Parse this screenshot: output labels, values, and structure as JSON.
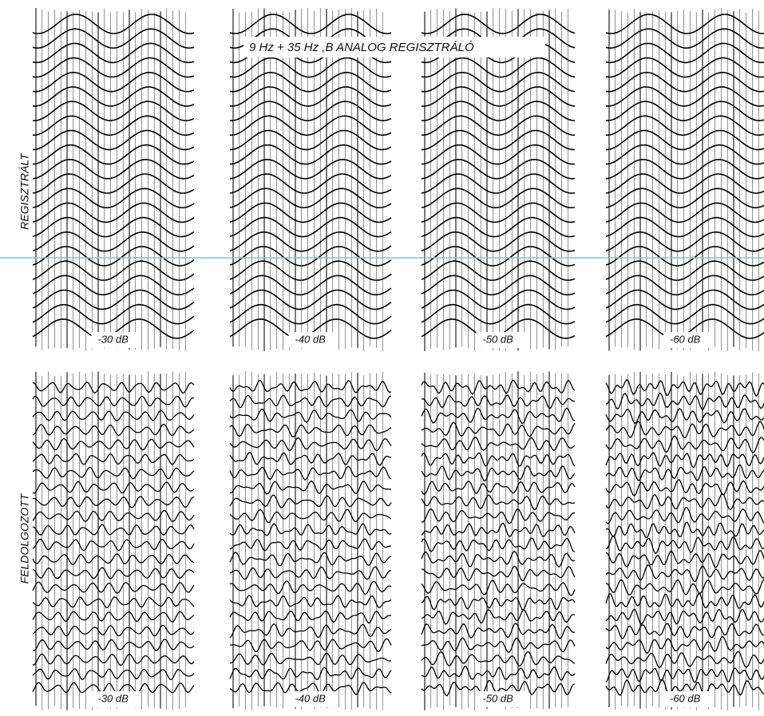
{
  "title": "9 Hz + 35 Hz ,B ANALOG REGISZTRÁLÓ",
  "rows": [
    {
      "label": "REGISZTRÁLT",
      "panels": [
        "-30 dB",
        "-40 dB",
        "-50 dB",
        "-60 dB"
      ]
    },
    {
      "label": "FELDOLGOZOTT",
      "panels": [
        "-30 dB",
        "-40 dB",
        "-50 dB",
        "-60 dB"
      ]
    }
  ]
}
